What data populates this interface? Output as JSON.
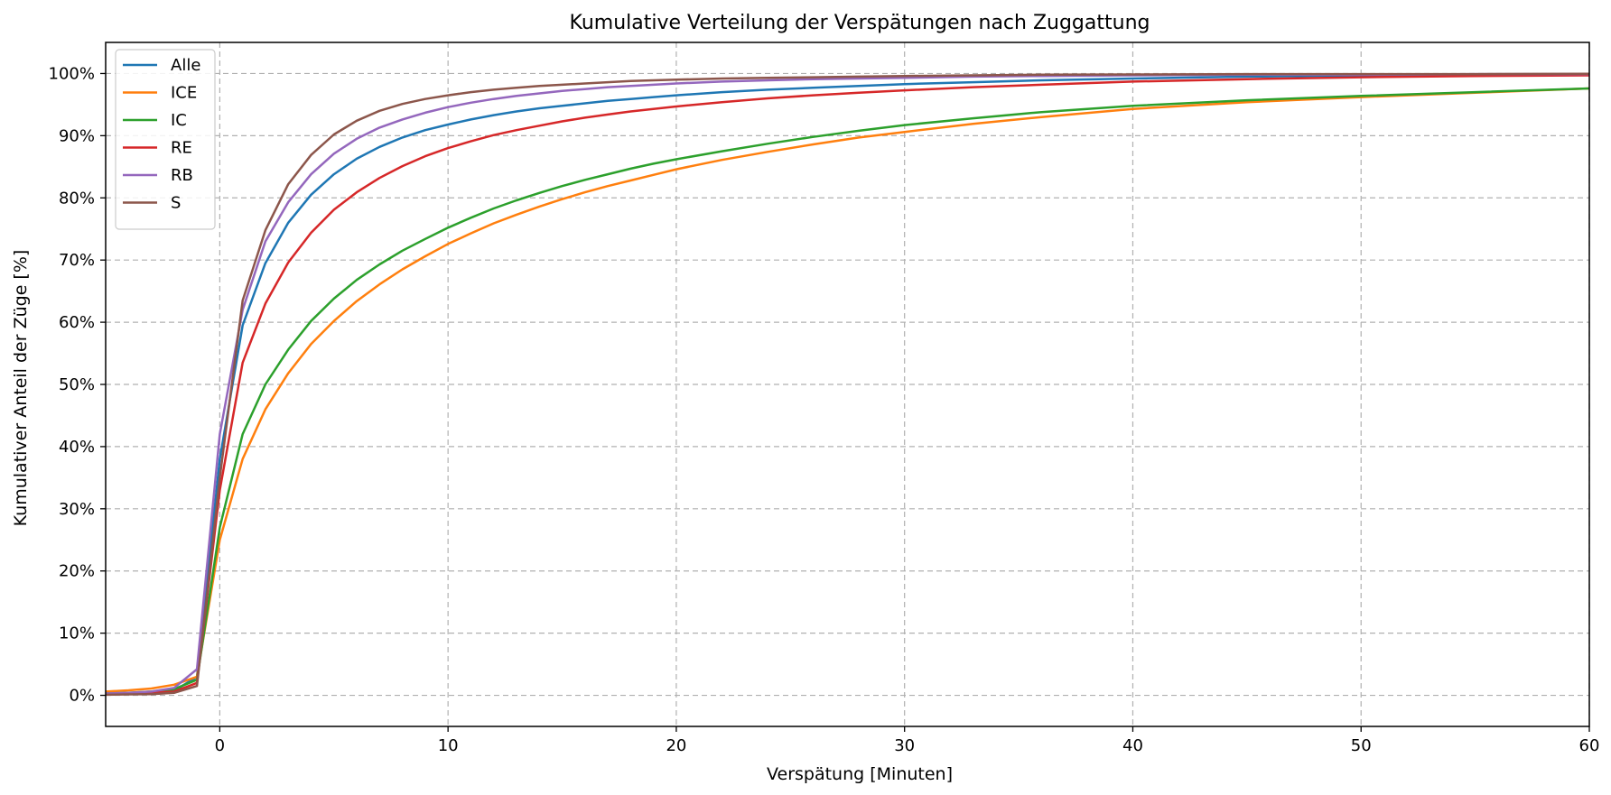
{
  "chart_data": {
    "type": "line",
    "title": "Kumulative Verteilung der Verspätungen nach Zuggattung",
    "xlabel": "Verspätung [Minuten]",
    "ylabel": "Kumulativer Anteil der Züge [%]",
    "xlim": [
      -5,
      60
    ],
    "ylim": [
      -5,
      105
    ],
    "xticks": [
      0,
      10,
      20,
      30,
      40,
      50,
      60
    ],
    "xtick_labels": [
      "0",
      "10",
      "20",
      "30",
      "40",
      "50",
      "60"
    ],
    "yticks": [
      0,
      10,
      20,
      30,
      40,
      50,
      60,
      70,
      80,
      90,
      100
    ],
    "ytick_labels": [
      "0%",
      "10%",
      "20%",
      "30%",
      "40%",
      "50%",
      "60%",
      "70%",
      "80%",
      "90%",
      "100%"
    ],
    "grid": true,
    "legend_position": "top-left",
    "x": [
      -5,
      -4,
      -3,
      -2,
      -1,
      0,
      1,
      2,
      3,
      4,
      5,
      6,
      7,
      8,
      9,
      10,
      11,
      12,
      13,
      14,
      15,
      16,
      17,
      18,
      19,
      20,
      22,
      24,
      26,
      28,
      30,
      33,
      36,
      40,
      45,
      50,
      55,
      60
    ],
    "series": [
      {
        "name": "Alle",
        "color": "#1f77b4",
        "values": [
          0.2,
          0.3,
          0.4,
          0.7,
          3.0,
          38.0,
          59.5,
          69.5,
          76.0,
          80.5,
          83.8,
          86.3,
          88.2,
          89.7,
          90.9,
          91.8,
          92.6,
          93.3,
          93.9,
          94.4,
          94.8,
          95.2,
          95.6,
          95.9,
          96.2,
          96.5,
          97.0,
          97.4,
          97.7,
          98.0,
          98.3,
          98.6,
          98.9,
          99.2,
          99.5,
          99.7,
          99.8,
          99.8
        ]
      },
      {
        "name": "ICE",
        "color": "#ff7f0e",
        "values": [
          0.6,
          0.8,
          1.1,
          1.7,
          3.0,
          25.0,
          38.0,
          46.0,
          51.8,
          56.5,
          60.2,
          63.4,
          66.1,
          68.5,
          70.6,
          72.6,
          74.3,
          75.9,
          77.3,
          78.6,
          79.8,
          80.9,
          81.9,
          82.8,
          83.7,
          84.6,
          86.1,
          87.4,
          88.6,
          89.7,
          90.6,
          91.9,
          93.0,
          94.3,
          95.4,
          96.2,
          96.9,
          97.6
        ]
      },
      {
        "name": "IC",
        "color": "#2ca02c",
        "values": [
          0.3,
          0.4,
          0.6,
          1.0,
          2.5,
          27.0,
          42.0,
          50.0,
          55.6,
          60.2,
          63.8,
          66.8,
          69.3,
          71.5,
          73.4,
          75.2,
          76.8,
          78.3,
          79.6,
          80.8,
          81.9,
          82.9,
          83.8,
          84.7,
          85.5,
          86.2,
          87.5,
          88.7,
          89.8,
          90.8,
          91.7,
          92.8,
          93.8,
          94.8,
          95.7,
          96.4,
          97.0,
          97.6
        ]
      },
      {
        "name": "RE",
        "color": "#d62728",
        "values": [
          0.2,
          0.3,
          0.4,
          0.6,
          2.0,
          33.0,
          53.5,
          63.0,
          69.6,
          74.4,
          78.1,
          80.9,
          83.2,
          85.1,
          86.7,
          88.0,
          89.1,
          90.1,
          90.9,
          91.6,
          92.3,
          92.9,
          93.4,
          93.9,
          94.3,
          94.7,
          95.4,
          96.0,
          96.5,
          96.9,
          97.3,
          97.8,
          98.2,
          98.7,
          99.1,
          99.4,
          99.6,
          99.7
        ]
      },
      {
        "name": "RB",
        "color": "#9467bd",
        "values": [
          0.3,
          0.4,
          0.6,
          1.2,
          4.2,
          42.0,
          62.0,
          73.0,
          79.3,
          83.8,
          87.1,
          89.5,
          91.3,
          92.6,
          93.7,
          94.6,
          95.3,
          95.9,
          96.4,
          96.8,
          97.2,
          97.5,
          97.8,
          98.0,
          98.2,
          98.4,
          98.7,
          98.9,
          99.1,
          99.2,
          99.3,
          99.5,
          99.6,
          99.7,
          99.8,
          99.8,
          99.9,
          99.9
        ]
      },
      {
        "name": "S",
        "color": "#8c564b",
        "values": [
          0.1,
          0.15,
          0.2,
          0.4,
          1.5,
          35.0,
          63.5,
          74.8,
          82.2,
          86.9,
          90.2,
          92.4,
          94.0,
          95.1,
          95.9,
          96.5,
          97.0,
          97.4,
          97.7,
          98.0,
          98.2,
          98.4,
          98.6,
          98.8,
          98.9,
          99.0,
          99.2,
          99.3,
          99.4,
          99.5,
          99.6,
          99.7,
          99.8,
          99.85,
          99.9,
          99.9,
          99.9,
          99.95
        ]
      }
    ]
  }
}
